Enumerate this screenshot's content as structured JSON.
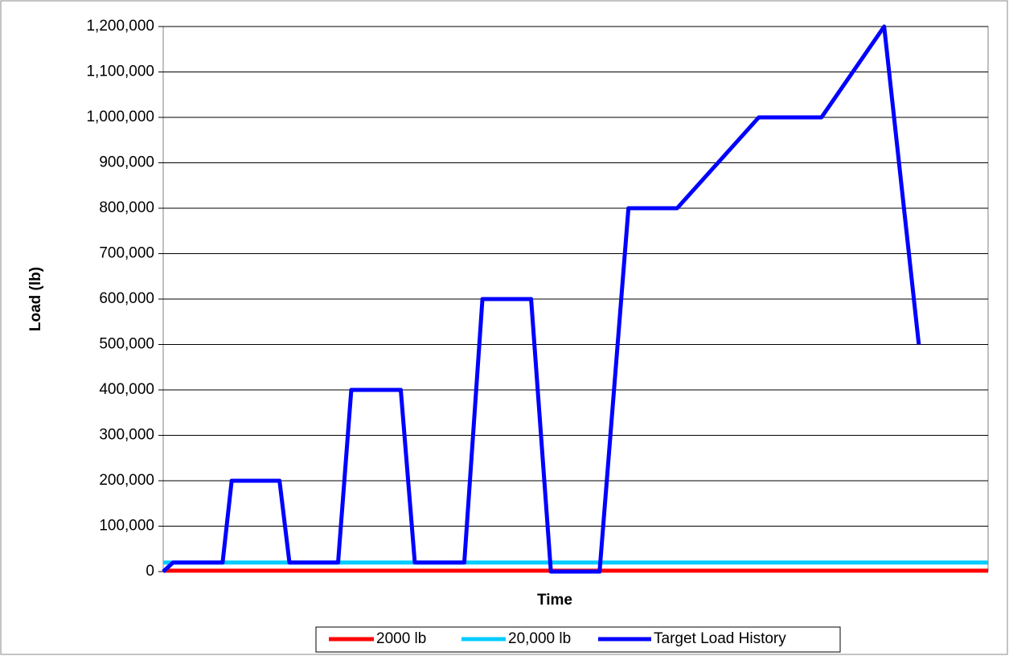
{
  "chart_data": {
    "type": "line",
    "xlabel": "Time",
    "ylabel": "Load (lb)",
    "xlim": [
      0,
      100
    ],
    "ylim": [
      0,
      1200000
    ],
    "yticks": [
      0,
      {
        "value": 100000,
        "label": "100,000"
      },
      {
        "value": 200000,
        "label": "200,000"
      },
      {
        "value": 300000,
        "label": "300,000"
      },
      {
        "value": 400000,
        "label": "400,000"
      },
      {
        "value": 500000,
        "label": "500,000"
      },
      {
        "value": 600000,
        "label": "600,000"
      },
      {
        "value": 700000,
        "label": "700,000"
      },
      {
        "value": 800000,
        "label": "800,000"
      },
      {
        "value": 900000,
        "label": "900,000"
      },
      {
        "value": 1000000,
        "label": "1,000,000"
      },
      {
        "value": 1100000,
        "label": "1,100,000"
      },
      {
        "value": 1200000,
        "label": "1,200,000"
      }
    ],
    "grid": true,
    "legend": "bottom",
    "series": [
      {
        "name": "2000 lb",
        "color": "#ff0000",
        "x": [
          0,
          100
        ],
        "values": [
          2000,
          2000
        ]
      },
      {
        "name": "20,000 lb",
        "color": "#00ccff",
        "x": [
          0,
          100
        ],
        "values": [
          20000,
          20000
        ]
      },
      {
        "name": "Target Load History",
        "color": "#0000ff",
        "x": [
          0,
          1.2,
          7.2,
          8.3,
          14.1,
          15.3,
          21.2,
          22.8,
          28.8,
          30.5,
          36.5,
          38.7,
          44.6,
          47.0,
          52.9,
          56.4,
          62.3,
          72.2,
          79.8,
          87.4,
          91.6
        ],
        "values": [
          0,
          20000,
          20000,
          200000,
          200000,
          20000,
          20000,
          400000,
          400000,
          20000,
          20000,
          600000,
          600000,
          0,
          0,
          800000,
          800000,
          1000000,
          1000000,
          1200000,
          500000
        ]
      }
    ]
  }
}
